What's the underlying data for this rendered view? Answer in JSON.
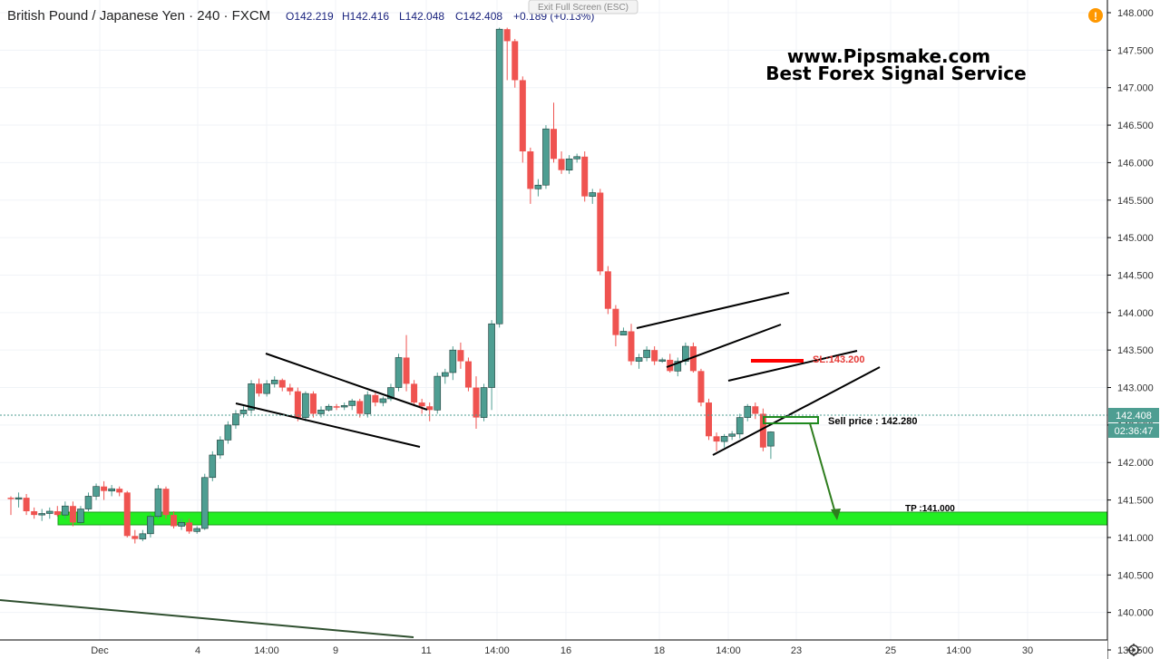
{
  "header": {
    "symbol": "British Pound / Japanese Yen · 240 · FXCM",
    "open": "O142.219",
    "high": "H142.416",
    "low": "L142.048",
    "close": "C142.408",
    "change": "+0.189 (+0.13%)",
    "exit_fullscreen": "Exit Full Screen (ESC)"
  },
  "watermark": {
    "line1": "www.Pipsmake.com",
    "line2": "Best Forex Signal Service"
  },
  "price_axis": {
    "current_price": "142.408",
    "countdown": "02:36:47"
  },
  "annotations": {
    "sl": "SL:143.200",
    "sell": "Sell price : 142.280",
    "tp": "TP :141.000"
  },
  "colors": {
    "up": "#4e9e92",
    "down": "#ef5350",
    "sl_line": "#ff0000",
    "tp_zone": "#22ee22",
    "arrow": "#2e7d1e",
    "last_price": "#4e9e92"
  },
  "alert_icon": "!",
  "settings_icon": "gear-icon",
  "chart_data": {
    "type": "candlestick",
    "ylim": [
      139.3,
      148.1
    ],
    "yticks": [
      "139.500",
      "140.000",
      "140.500",
      "141.000",
      "141.500",
      "142.000",
      "142.500",
      "143.000",
      "143.500",
      "144.000",
      "144.500",
      "145.000",
      "145.500",
      "146.000",
      "146.500",
      "147.000",
      "147.500",
      "148.000"
    ],
    "xticks": [
      "Dec",
      "4",
      "14:00",
      "9",
      "11",
      "14:00",
      "16",
      "18",
      "14:00",
      "23",
      "25",
      "14:00",
      "30"
    ],
    "candles": [
      [
        141.53,
        141.55,
        141.3,
        141.52
      ],
      [
        141.52,
        141.6,
        141.4,
        141.53
      ],
      [
        141.53,
        141.58,
        141.3,
        141.35
      ],
      [
        141.35,
        141.4,
        141.25,
        141.3
      ],
      [
        141.3,
        141.38,
        141.22,
        141.32
      ],
      [
        141.32,
        141.4,
        141.25,
        141.35
      ],
      [
        141.35,
        141.42,
        141.28,
        141.3
      ],
      [
        141.3,
        141.48,
        141.25,
        141.42
      ],
      [
        141.42,
        141.48,
        141.15,
        141.2
      ],
      [
        141.2,
        141.42,
        141.18,
        141.38
      ],
      [
        141.38,
        141.6,
        141.35,
        141.55
      ],
      [
        141.55,
        141.72,
        141.5,
        141.68
      ],
      [
        141.68,
        141.75,
        141.5,
        141.62
      ],
      [
        141.62,
        141.7,
        141.55,
        141.65
      ],
      [
        141.65,
        141.68,
        141.55,
        141.6
      ],
      [
        141.6,
        141.62,
        141.0,
        141.02
      ],
      [
        141.02,
        141.1,
        140.92,
        140.98
      ],
      [
        140.98,
        141.1,
        140.95,
        141.05
      ],
      [
        141.05,
        141.32,
        141.0,
        141.28
      ],
      [
        141.28,
        141.7,
        141.25,
        141.65
      ],
      [
        141.65,
        141.68,
        141.25,
        141.3
      ],
      [
        141.3,
        141.35,
        141.12,
        141.15
      ],
      [
        141.15,
        141.25,
        141.1,
        141.2
      ],
      [
        141.2,
        141.25,
        141.05,
        141.08
      ],
      [
        141.08,
        141.15,
        141.05,
        141.12
      ],
      [
        141.12,
        141.85,
        141.1,
        141.8
      ],
      [
        141.8,
        142.15,
        141.75,
        142.1
      ],
      [
        142.1,
        142.35,
        142.05,
        142.3
      ],
      [
        142.3,
        142.55,
        142.25,
        142.5
      ],
      [
        142.5,
        142.7,
        142.45,
        142.65
      ],
      [
        142.65,
        142.75,
        142.6,
        142.7
      ],
      [
        142.7,
        143.1,
        142.65,
        143.05
      ],
      [
        143.05,
        143.12,
        142.88,
        142.92
      ],
      [
        142.92,
        143.1,
        142.88,
        143.05
      ],
      [
        143.05,
        143.15,
        143.0,
        143.1
      ],
      [
        143.1,
        143.12,
        142.95,
        143.0
      ],
      [
        143.0,
        143.05,
        142.9,
        142.95
      ],
      [
        142.95,
        143.0,
        142.55,
        142.6
      ],
      [
        142.6,
        142.95,
        142.55,
        142.92
      ],
      [
        142.92,
        142.95,
        142.6,
        142.65
      ],
      [
        142.65,
        142.75,
        142.6,
        142.7
      ],
      [
        142.7,
        142.78,
        142.68,
        142.75
      ],
      [
        142.75,
        142.78,
        142.7,
        142.74
      ],
      [
        142.74,
        142.8,
        142.7,
        142.76
      ],
      [
        142.76,
        142.85,
        142.7,
        142.82
      ],
      [
        142.82,
        142.85,
        142.6,
        142.65
      ],
      [
        142.65,
        142.95,
        142.6,
        142.9
      ],
      [
        142.9,
        142.95,
        142.75,
        142.8
      ],
      [
        142.8,
        142.88,
        142.75,
        142.85
      ],
      [
        142.85,
        143.05,
        142.82,
        143.0
      ],
      [
        143.0,
        143.45,
        142.95,
        143.4
      ],
      [
        143.4,
        143.7,
        142.95,
        143.05
      ],
      [
        143.05,
        143.1,
        142.75,
        142.8
      ],
      [
        142.8,
        142.85,
        142.65,
        142.75
      ],
      [
        142.75,
        142.8,
        142.55,
        142.7
      ],
      [
        142.7,
        143.2,
        142.65,
        143.15
      ],
      [
        143.15,
        143.25,
        143.05,
        143.2
      ],
      [
        143.2,
        143.55,
        143.1,
        143.5
      ],
      [
        143.5,
        143.6,
        143.25,
        143.35
      ],
      [
        143.35,
        143.4,
        142.95,
        143.0
      ],
      [
        143.0,
        143.15,
        142.45,
        142.6
      ],
      [
        142.6,
        143.05,
        142.55,
        143.0
      ],
      [
        143.0,
        143.9,
        142.7,
        143.85
      ],
      [
        143.85,
        147.8,
        143.8,
        147.78
      ],
      [
        147.78,
        147.8,
        147.1,
        147.62
      ],
      [
        147.62,
        147.65,
        147.0,
        147.1
      ],
      [
        147.1,
        147.15,
        146.0,
        146.15
      ],
      [
        146.15,
        146.2,
        145.45,
        145.65
      ],
      [
        145.65,
        145.78,
        145.55,
        145.7
      ],
      [
        145.7,
        146.5,
        145.65,
        146.45
      ],
      [
        146.45,
        146.8,
        146.0,
        146.05
      ],
      [
        146.05,
        146.15,
        145.85,
        145.9
      ],
      [
        145.9,
        146.1,
        145.85,
        146.05
      ],
      [
        146.05,
        146.12,
        146.0,
        146.08
      ],
      [
        146.08,
        146.15,
        145.48,
        145.55
      ],
      [
        145.55,
        145.65,
        145.45,
        145.6
      ],
      [
        145.6,
        145.65,
        144.5,
        144.55
      ],
      [
        144.55,
        144.62,
        143.98,
        144.05
      ],
      [
        144.05,
        144.1,
        143.55,
        143.7
      ],
      [
        143.7,
        143.8,
        143.72,
        143.75
      ],
      [
        143.75,
        143.85,
        143.3,
        143.35
      ],
      [
        143.35,
        143.45,
        143.25,
        143.4
      ],
      [
        143.4,
        143.55,
        143.35,
        143.5
      ],
      [
        143.5,
        143.55,
        143.3,
        143.35
      ],
      [
        143.35,
        143.4,
        143.33,
        143.37
      ],
      [
        143.37,
        143.45,
        143.2,
        143.22
      ],
      [
        143.22,
        143.4,
        143.15,
        143.35
      ],
      [
        143.35,
        143.6,
        143.3,
        143.55
      ],
      [
        143.55,
        143.6,
        143.2,
        143.22
      ],
      [
        143.22,
        143.25,
        142.75,
        142.8
      ],
      [
        142.8,
        142.85,
        142.3,
        142.35
      ],
      [
        142.35,
        142.4,
        142.15,
        142.28
      ],
      [
        142.28,
        142.38,
        142.2,
        142.35
      ],
      [
        142.35,
        142.42,
        142.3,
        142.38
      ],
      [
        142.38,
        142.65,
        142.32,
        142.6
      ],
      [
        142.6,
        142.78,
        142.55,
        142.75
      ],
      [
        142.75,
        142.8,
        142.58,
        142.65
      ],
      [
        142.65,
        142.72,
        142.15,
        142.2
      ],
      [
        142.219,
        142.416,
        142.048,
        142.408
      ]
    ]
  }
}
